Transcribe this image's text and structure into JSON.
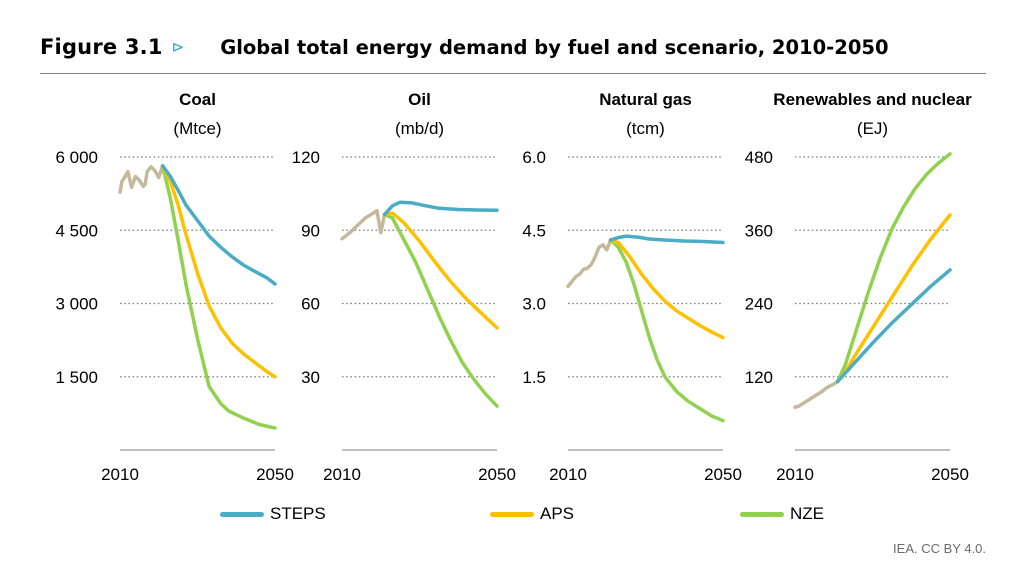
{
  "figure": {
    "label": "Figure 3.1",
    "arrow": "⊳",
    "title": "Global total energy demand by fuel and scenario, 2010-2050"
  },
  "credit": "IEA. CC BY 4.0.",
  "legend": [
    {
      "name": "STEPS",
      "color": "#4bacc6"
    },
    {
      "name": "APS",
      "color": "#ffc000"
    },
    {
      "name": "NZE",
      "color": "#92d050"
    }
  ],
  "colors": {
    "historical": "#c4b99a",
    "STEPS": "#4bacc6",
    "APS": "#ffc000",
    "NZE": "#92d050",
    "gridline": "#7f7f7f",
    "axis": "#7f7f7f"
  },
  "chart_data": [
    {
      "type": "line",
      "title": "Coal",
      "subtitle": "(Mtce)",
      "xlim": [
        2010,
        2050
      ],
      "ylim": [
        0,
        6000
      ],
      "xticks": [
        "2010",
        "2050"
      ],
      "yticks": [
        {
          "v": 1500,
          "label": "1 500"
        },
        {
          "v": 3000,
          "label": "3 000"
        },
        {
          "v": 4500,
          "label": "4 500"
        },
        {
          "v": 6000,
          "label": "6 000"
        }
      ],
      "historical": {
        "x": [
          2010,
          2010.5,
          2011,
          2012,
          2013,
          2014,
          2015,
          2016,
          2016.5,
          2017,
          2018,
          2019,
          2020,
          2021
        ],
        "y": [
          5280,
          5500,
          5560,
          5700,
          5380,
          5600,
          5520,
          5400,
          5440,
          5700,
          5800,
          5720,
          5580,
          5820
        ]
      },
      "series": [
        {
          "name": "STEPS",
          "x": [
            2021,
            2023,
            2025,
            2027,
            2030,
            2033,
            2036,
            2039,
            2042,
            2045,
            2048,
            2050
          ],
          "y": [
            5820,
            5600,
            5320,
            5020,
            4700,
            4380,
            4150,
            3950,
            3780,
            3650,
            3520,
            3400
          ]
        },
        {
          "name": "APS",
          "x": [
            2021,
            2023,
            2025,
            2027,
            2030,
            2033,
            2036,
            2039,
            2042,
            2045,
            2048,
            2050
          ],
          "y": [
            5820,
            5500,
            5020,
            4420,
            3620,
            2950,
            2500,
            2180,
            1960,
            1780,
            1600,
            1500
          ]
        },
        {
          "name": "NZE",
          "x": [
            2021,
            2023,
            2025,
            2027,
            2030,
            2033,
            2036,
            2038,
            2042,
            2046,
            2050
          ],
          "y": [
            5820,
            5150,
            4300,
            3400,
            2280,
            1300,
            950,
            800,
            650,
            520,
            450
          ]
        }
      ]
    },
    {
      "type": "line",
      "title": "Oil",
      "subtitle": "(mb/d)",
      "xlim": [
        2010,
        2050
      ],
      "ylim": [
        0,
        120
      ],
      "xticks": [
        "2010",
        "2050"
      ],
      "yticks": [
        {
          "v": 30,
          "label": "30"
        },
        {
          "v": 60,
          "label": "60"
        },
        {
          "v": 90,
          "label": "90"
        },
        {
          "v": 120,
          "label": "120"
        }
      ],
      "historical": {
        "x": [
          2010,
          2012,
          2014,
          2016,
          2017,
          2018,
          2019,
          2020,
          2021
        ],
        "y": [
          86.5,
          89,
          92,
          95,
          96,
          97,
          98,
          89,
          96.5
        ]
      },
      "series": [
        {
          "name": "STEPS",
          "x": [
            2021,
            2023,
            2025,
            2028,
            2031,
            2035,
            2040,
            2045,
            2050
          ],
          "y": [
            96.5,
            100,
            101.5,
            101.2,
            100.2,
            99,
            98.5,
            98.3,
            98.2
          ]
        },
        {
          "name": "APS",
          "x": [
            2021,
            2023,
            2026,
            2030,
            2034,
            2038,
            2042,
            2046,
            2050
          ],
          "y": [
            96.5,
            97,
            93,
            85.5,
            77,
            69,
            62,
            56,
            50
          ]
        },
        {
          "name": "NZE",
          "x": [
            2021,
            2023,
            2026,
            2029,
            2032,
            2035,
            2038,
            2041,
            2044,
            2047,
            2050
          ],
          "y": [
            96.5,
            95,
            86,
            77,
            66,
            55,
            45,
            36,
            29,
            23,
            18
          ]
        }
      ]
    },
    {
      "type": "line",
      "title": "Natural gas",
      "subtitle": "(tcm)",
      "xlim": [
        2010,
        2050
      ],
      "ylim": [
        0,
        6.0
      ],
      "xticks": [
        "2010",
        "2050"
      ],
      "yticks": [
        {
          "v": 1.5,
          "label": "1.5"
        },
        {
          "v": 3.0,
          "label": "3.0"
        },
        {
          "v": 4.5,
          "label": "4.5"
        },
        {
          "v": 6.0,
          "label": "6.0"
        }
      ],
      "historical": {
        "x": [
          2010,
          2011,
          2012,
          2013,
          2014,
          2015,
          2016,
          2017,
          2018,
          2019,
          2020,
          2021
        ],
        "y": [
          3.35,
          3.45,
          3.55,
          3.6,
          3.7,
          3.72,
          3.8,
          3.95,
          4.15,
          4.2,
          4.1,
          4.3
        ]
      },
      "series": [
        {
          "name": "STEPS",
          "x": [
            2021,
            2023,
            2025,
            2028,
            2031,
            2035,
            2040,
            2045,
            2050
          ],
          "y": [
            4.3,
            4.35,
            4.38,
            4.36,
            4.32,
            4.3,
            4.28,
            4.27,
            4.25
          ]
        },
        {
          "name": "APS",
          "x": [
            2021,
            2023,
            2026,
            2029,
            2032,
            2035,
            2038,
            2041,
            2044,
            2047,
            2050
          ],
          "y": [
            4.3,
            4.25,
            3.95,
            3.6,
            3.3,
            3.05,
            2.85,
            2.7,
            2.55,
            2.42,
            2.3
          ]
        },
        {
          "name": "NZE",
          "x": [
            2021,
            2023,
            2025,
            2027,
            2029,
            2031,
            2033,
            2035,
            2038,
            2041,
            2044,
            2047,
            2050
          ],
          "y": [
            4.3,
            4.15,
            3.85,
            3.4,
            2.85,
            2.3,
            1.85,
            1.5,
            1.2,
            1.0,
            0.85,
            0.7,
            0.6
          ]
        }
      ]
    },
    {
      "type": "line",
      "title": "Renewables and nuclear",
      "subtitle": "(EJ)",
      "xlim": [
        2010,
        2050
      ],
      "ylim": [
        0,
        480
      ],
      "xticks": [
        "2010",
        "2050"
      ],
      "yticks": [
        {
          "v": 120,
          "label": "120"
        },
        {
          "v": 240,
          "label": "240"
        },
        {
          "v": 360,
          "label": "360"
        },
        {
          "v": 480,
          "label": "480"
        }
      ],
      "historical": {
        "x": [
          2010,
          2011,
          2012,
          2013,
          2014,
          2015,
          2016,
          2017,
          2018,
          2019,
          2020,
          2021
        ],
        "y": [
          70,
          72,
          76,
          80,
          84,
          88,
          92,
          96,
          101,
          105,
          108,
          112
        ]
      },
      "series": [
        {
          "name": "STEPS",
          "x": [
            2021,
            2025,
            2030,
            2035,
            2040,
            2045,
            2050
          ],
          "y": [
            112,
            140,
            175,
            208,
            238,
            268,
            295
          ]
        },
        {
          "name": "APS",
          "x": [
            2021,
            2023,
            2026,
            2030,
            2035,
            2040,
            2045,
            2050
          ],
          "y": [
            112,
            128,
            160,
            200,
            250,
            300,
            345,
            385
          ]
        },
        {
          "name": "NZE",
          "x": [
            2021,
            2023,
            2026,
            2029,
            2032,
            2035,
            2038,
            2041,
            2044,
            2047,
            2050
          ],
          "y": [
            112,
            140,
            200,
            260,
            315,
            362,
            398,
            428,
            452,
            470,
            485
          ]
        }
      ]
    }
  ]
}
